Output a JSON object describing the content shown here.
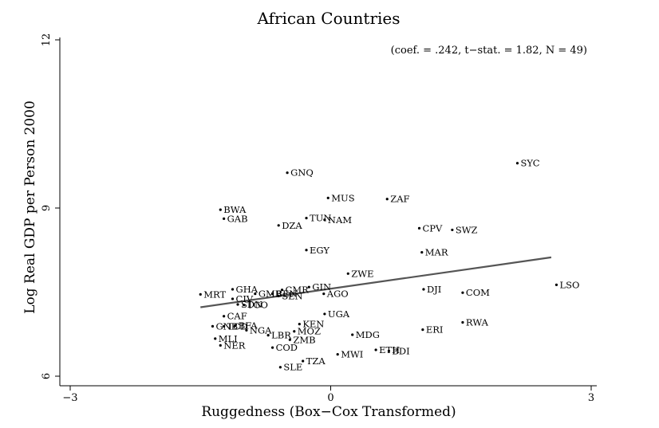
{
  "chart_data": {
    "type": "scatter",
    "title": "African Countries",
    "annotation": "(coef. = .242, t−stat. = 1.82, N = 49)",
    "xlabel": "Ruggedness (Box−Cox Transformed)",
    "ylabel": "Log Real GDP per Person 2000",
    "xlim": [
      -3,
      3
    ],
    "ylim": [
      6,
      12
    ],
    "xticks": [
      {
        "value": -3,
        "label": "−3"
      },
      {
        "value": 0,
        "label": "0"
      },
      {
        "value": 3,
        "label": "3"
      }
    ],
    "yticks": [
      {
        "value": 6,
        "label": "6"
      },
      {
        "value": 9,
        "label": "9"
      },
      {
        "value": 12,
        "label": "12"
      }
    ],
    "grid": false,
    "fit_line": {
      "x": [
        -1.5,
        2.54
      ],
      "y": [
        7.23,
        8.12
      ]
    },
    "points": [
      {
        "label": "SYC",
        "x": 2.15,
        "y": 9.8
      },
      {
        "label": "GNQ",
        "x": -0.5,
        "y": 9.63
      },
      {
        "label": "MUS",
        "x": -0.03,
        "y": 9.18
      },
      {
        "label": "ZAF",
        "x": 0.65,
        "y": 9.16
      },
      {
        "label": "BWA",
        "x": -1.27,
        "y": 8.97
      },
      {
        "label": "GAB",
        "x": -1.23,
        "y": 8.81
      },
      {
        "label": "TUN",
        "x": -0.28,
        "y": 8.82
      },
      {
        "label": "NAM",
        "x": -0.07,
        "y": 8.79
      },
      {
        "label": "DZA",
        "x": -0.6,
        "y": 8.69
      },
      {
        "label": "CPV",
        "x": 1.02,
        "y": 8.64
      },
      {
        "label": "SWZ",
        "x": 1.4,
        "y": 8.61
      },
      {
        "label": "EGY",
        "x": -0.28,
        "y": 8.25
      },
      {
        "label": "MAR",
        "x": 1.05,
        "y": 8.21
      },
      {
        "label": "ZWE",
        "x": 0.2,
        "y": 7.83
      },
      {
        "label": "LSO",
        "x": 2.6,
        "y": 7.63
      },
      {
        "label": "GIN",
        "x": -0.25,
        "y": 7.59
      },
      {
        "label": "CMR",
        "x": -0.56,
        "y": 7.54
      },
      {
        "label": "GHA",
        "x": -1.13,
        "y": 7.55
      },
      {
        "label": "DJI",
        "x": 1.07,
        "y": 7.55
      },
      {
        "label": "GMB",
        "x": -0.87,
        "y": 7.47
      },
      {
        "label": "BEN",
        "x": -0.67,
        "y": 7.47
      },
      {
        "label": "SEN",
        "x": -0.6,
        "y": 7.43
      },
      {
        "label": "AGO",
        "x": -0.08,
        "y": 7.47
      },
      {
        "label": "COM",
        "x": 1.52,
        "y": 7.49
      },
      {
        "label": "MRT",
        "x": -1.5,
        "y": 7.46
      },
      {
        "label": "CIV",
        "x": -1.13,
        "y": 7.38
      },
      {
        "label": "SDN",
        "x": -1.07,
        "y": 7.28
      },
      {
        "label": "TGO",
        "x": -1.0,
        "y": 7.27
      },
      {
        "label": "UGA",
        "x": -0.07,
        "y": 7.11
      },
      {
        "label": "CAF",
        "x": -1.23,
        "y": 7.07
      },
      {
        "label": "KEN",
        "x": -0.36,
        "y": 6.93
      },
      {
        "label": "RWA",
        "x": 1.52,
        "y": 6.96
      },
      {
        "label": "BFA",
        "x": -1.1,
        "y": 6.9
      },
      {
        "label": "GNB",
        "x": -1.36,
        "y": 6.89
      },
      {
        "label": "TCD",
        "x": -1.23,
        "y": 6.89
      },
      {
        "label": "ERI",
        "x": 1.06,
        "y": 6.83
      },
      {
        "label": "NGA",
        "x": -0.97,
        "y": 6.82
      },
      {
        "label": "MOZ",
        "x": -0.42,
        "y": 6.8
      },
      {
        "label": "MDG",
        "x": 0.25,
        "y": 6.74
      },
      {
        "label": "MLI",
        "x": -1.33,
        "y": 6.67
      },
      {
        "label": "LBR",
        "x": -0.72,
        "y": 6.73
      },
      {
        "label": "ZMB",
        "x": -0.47,
        "y": 6.65
      },
      {
        "label": "NER",
        "x": -1.27,
        "y": 6.55
      },
      {
        "label": "COD",
        "x": -0.67,
        "y": 6.51
      },
      {
        "label": "ETH",
        "x": 0.52,
        "y": 6.47
      },
      {
        "label": "BDI",
        "x": 0.67,
        "y": 6.45
      },
      {
        "label": "MWI",
        "x": 0.08,
        "y": 6.39
      },
      {
        "label": "TZA",
        "x": -0.32,
        "y": 6.27
      },
      {
        "label": "SLE",
        "x": -0.58,
        "y": 6.16
      }
    ]
  }
}
